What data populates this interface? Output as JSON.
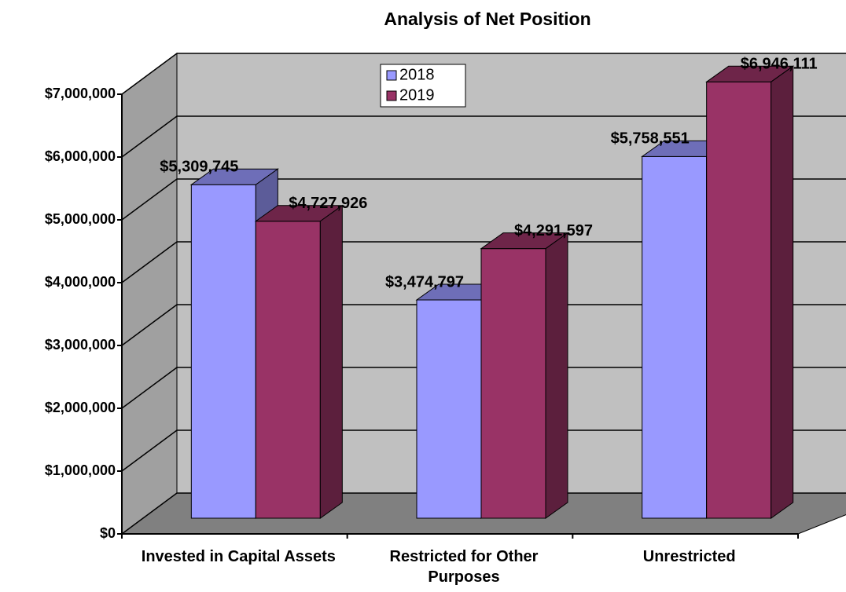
{
  "chart_data": {
    "type": "bar3d",
    "title": "Analysis of Net Position",
    "categories": [
      "Invested in Capital Assets",
      "Restricted for Other Purposes",
      "Unrestricted"
    ],
    "series": [
      {
        "name": "2018",
        "color": "#9999ff",
        "values": [
          5309745,
          3474797,
          5758551
        ],
        "value_labels": [
          "$5,309,745",
          "$3,474,797",
          "$5,758,551"
        ]
      },
      {
        "name": "2019",
        "color": "#993366",
        "values": [
          4727926,
          4291597,
          6946111
        ],
        "value_labels": [
          "$4,727,926",
          "$4,291,597",
          "$6,946,111"
        ]
      }
    ],
    "ylim": [
      0,
      7000000
    ],
    "yticks": [
      {
        "value": 0,
        "label": "$0"
      },
      {
        "value": 1000000,
        "label": "$1,000,000"
      },
      {
        "value": 2000000,
        "label": "$2,000,000"
      },
      {
        "value": 3000000,
        "label": "$3,000,000"
      },
      {
        "value": 4000000,
        "label": "$4,000,000"
      },
      {
        "value": 5000000,
        "label": "$5,000,000"
      },
      {
        "value": 6000000,
        "label": "$6,000,000"
      },
      {
        "value": 7000000,
        "label": "$7,000,000"
      }
    ],
    "grid": true
  }
}
